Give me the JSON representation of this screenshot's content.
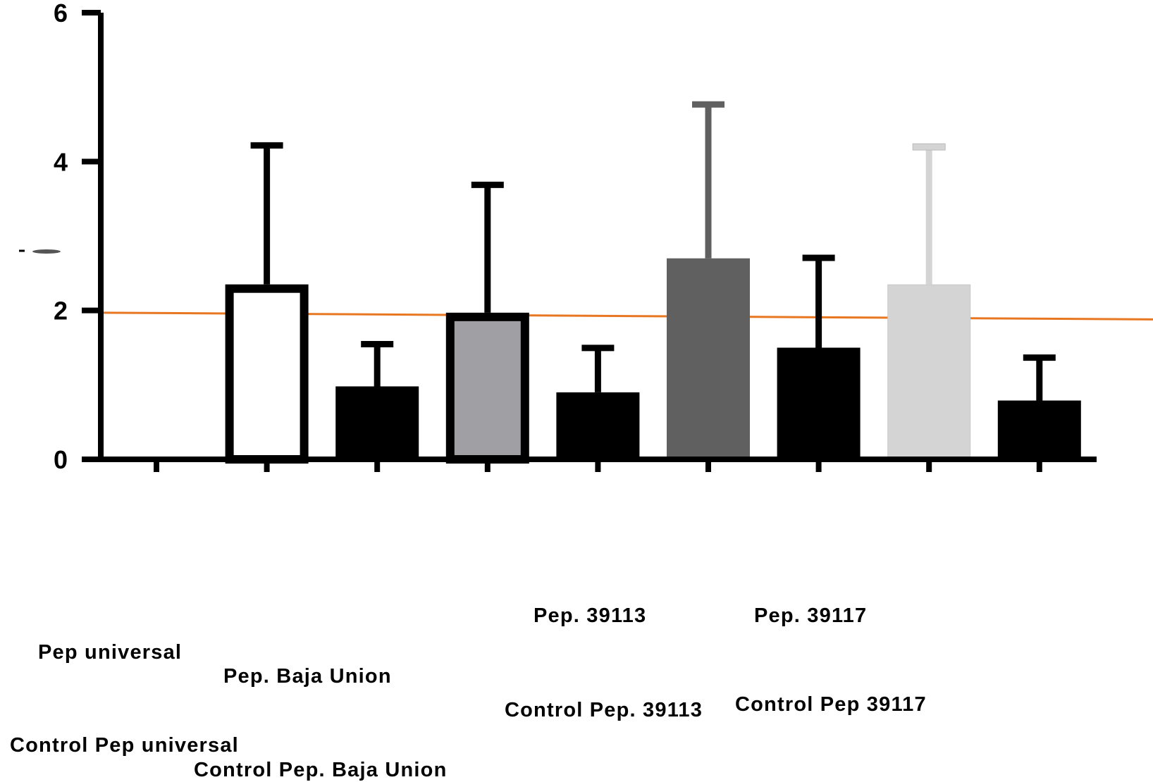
{
  "chart_data": {
    "type": "bar",
    "ylim": [
      0,
      6
    ],
    "yticks": [
      0,
      2,
      4,
      6
    ],
    "grid": false,
    "categories": [
      "Pep universal",
      "Control Pep universal",
      "Pep. Baja Union",
      "Control Pep. Baja Union",
      "Pep. 39113",
      "Control Pep. 39113",
      "Pep. 39117",
      "Control Pep 39117"
    ],
    "bars": [
      {
        "value": 2.35,
        "error": 1.9,
        "fill": "#ffffff",
        "edge": "#000000",
        "edge_width": 12
      },
      {
        "value": 0.98,
        "error": 0.6,
        "fill": "#000000",
        "edge": "#000000",
        "edge_width": 0
      },
      {
        "value": 1.97,
        "error": 1.75,
        "fill": "#a0a0a4",
        "edge": "#000000",
        "edge_width": 12
      },
      {
        "value": 0.9,
        "error": 0.63,
        "fill": "#000000",
        "edge": "#000000",
        "edge_width": 0
      },
      {
        "value": 2.7,
        "error": 2.1,
        "fill": "#606060",
        "edge": "#606060",
        "edge_width": 0
      },
      {
        "value": 1.5,
        "error": 1.24,
        "fill": "#000000",
        "edge": "#000000",
        "edge_width": 0
      },
      {
        "value": 2.35,
        "error": 1.88,
        "fill": "#d4d4d4",
        "edge": "#c8c8c8",
        "edge_width": 1
      },
      {
        "value": 0.79,
        "error": 0.61,
        "fill": "#000000",
        "edge": "#000000",
        "edge_width": 0
      }
    ],
    "threshold": {
      "start": 1.97,
      "end": 1.88,
      "color": "#e87722"
    }
  }
}
